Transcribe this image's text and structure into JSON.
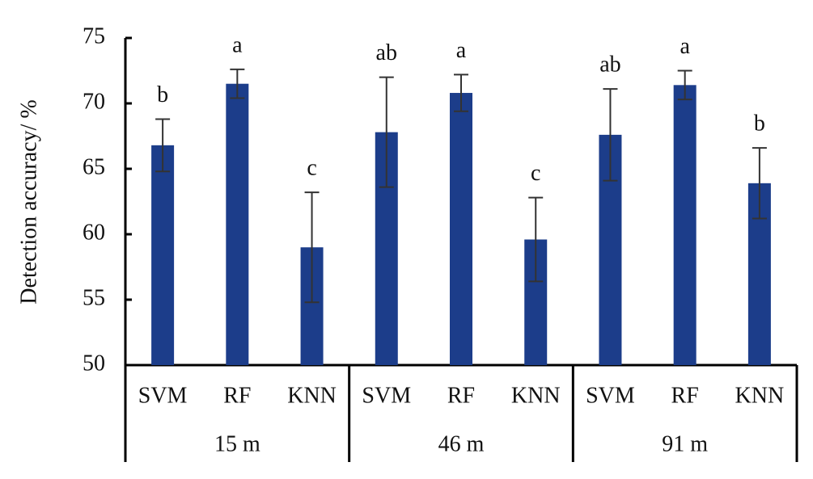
{
  "chart_data": {
    "type": "bar",
    "y_label": "Detection accuracy/ %",
    "categories": [
      "SVM",
      "RF",
      "KNN",
      "SVM",
      "RF",
      "KNN",
      "SVM",
      "RF",
      "KNN"
    ],
    "groups": [
      "15 m",
      "46 m",
      "91 m"
    ],
    "values": [
      66.8,
      71.5,
      59.0,
      67.8,
      70.8,
      59.6,
      67.6,
      71.4,
      63.9
    ],
    "errors": [
      2.0,
      1.1,
      4.2,
      4.2,
      1.4,
      3.2,
      3.5,
      1.1,
      2.7
    ],
    "letters": [
      "b",
      "a",
      "c",
      "ab",
      "a",
      "c",
      "ab",
      "a",
      "b"
    ],
    "color": "#1c3d8a",
    "ylim": [
      50,
      75
    ],
    "yticks": [
      50,
      55,
      60,
      65,
      70,
      75
    ]
  }
}
